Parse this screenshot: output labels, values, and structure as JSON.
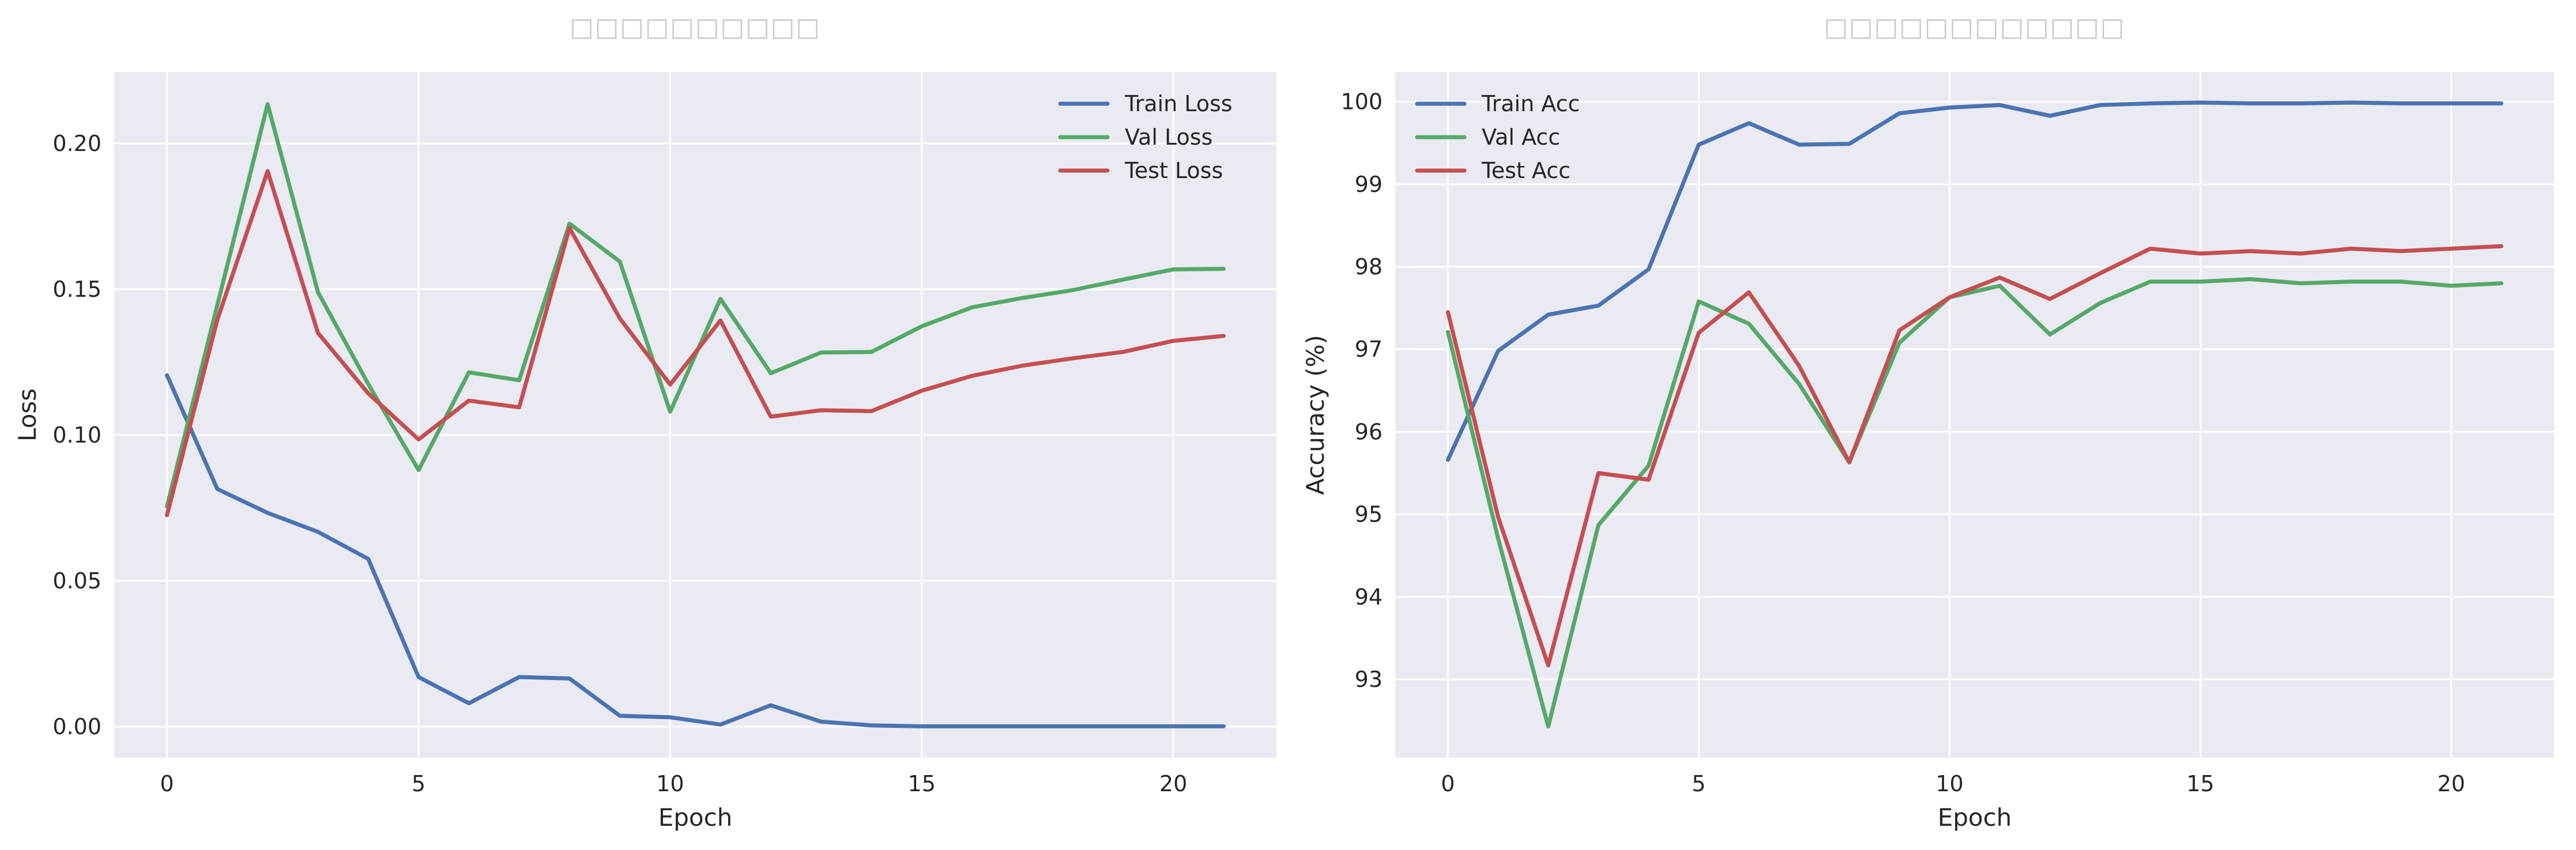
{
  "colors": {
    "train": "#4c72b0",
    "val": "#55a868",
    "test": "#c44e52",
    "plot_bg": "#eaeaf2",
    "grid": "#ffffff",
    "title_glyph": "#c8c8c8",
    "text": "#262626"
  },
  "chart_data": [
    {
      "type": "line",
      "title": "□□□□□□□□□□",
      "xlabel": "Epoch",
      "ylabel": "Loss",
      "xlim": [
        -1.05,
        22.05
      ],
      "ylim": [
        -0.0107,
        0.2245
      ],
      "xticks": [
        0,
        5,
        10,
        15,
        20
      ],
      "yticks": [
        0.0,
        0.05,
        0.1,
        0.15,
        0.2
      ],
      "ytick_labels": [
        "0.00",
        "0.05",
        "0.10",
        "0.15",
        "0.20"
      ],
      "grid": true,
      "legend_position": "top-right",
      "x": [
        0,
        1,
        2,
        3,
        4,
        5,
        6,
        7,
        8,
        9,
        10,
        11,
        12,
        13,
        14,
        15,
        16,
        17,
        18,
        19,
        20,
        21
      ],
      "series": [
        {
          "name": "Train Loss",
          "color": "#4c72b0",
          "values": [
            0.1205,
            0.0815,
            0.0733,
            0.0668,
            0.0575,
            0.017,
            0.008,
            0.017,
            0.0165,
            0.0037,
            0.0032,
            0.0007,
            0.0073,
            0.0017,
            0.0004,
            0.0001,
            0.0001,
            0.0001,
            0.0001,
            0.0001,
            0.0001,
            0.0001
          ]
        },
        {
          "name": "Val Loss",
          "color": "#55a868",
          "values": [
            0.0755,
            0.1445,
            0.2135,
            0.149,
            0.1175,
            0.088,
            0.1215,
            0.1188,
            0.1725,
            0.1595,
            0.108,
            0.1467,
            0.1212,
            0.1283,
            0.1285,
            0.1373,
            0.1438,
            0.147,
            0.1497,
            0.1533,
            0.1568,
            0.157
          ]
        },
        {
          "name": "Test Loss",
          "color": "#c44e52",
          "values": [
            0.0725,
            0.1395,
            0.1905,
            0.135,
            0.1143,
            0.0985,
            0.1118,
            0.1095,
            0.171,
            0.14,
            0.1173,
            0.1393,
            0.1063,
            0.1085,
            0.1082,
            0.1152,
            0.1203,
            0.1238,
            0.1263,
            0.1285,
            0.1323,
            0.134
          ]
        }
      ]
    },
    {
      "type": "line",
      "title": "□□□□□□□□□□□□",
      "xlabel": "Epoch",
      "ylabel": "Accuracy (%)",
      "xlim": [
        -1.05,
        22.05
      ],
      "ylim": [
        92.05,
        100.36
      ],
      "xticks": [
        0,
        5,
        10,
        15,
        20
      ],
      "yticks": [
        93,
        94,
        95,
        96,
        97,
        98,
        99,
        100
      ],
      "ytick_labels": [
        "93",
        "94",
        "95",
        "96",
        "97",
        "98",
        "99",
        "100"
      ],
      "grid": true,
      "legend_position": "top-left",
      "x": [
        0,
        1,
        2,
        3,
        4,
        5,
        6,
        7,
        8,
        9,
        10,
        11,
        12,
        13,
        14,
        15,
        16,
        17,
        18,
        19,
        20,
        21
      ],
      "series": [
        {
          "name": "Train Acc",
          "color": "#4c72b0",
          "values": [
            95.66,
            96.98,
            97.42,
            97.53,
            97.97,
            99.48,
            99.74,
            99.48,
            99.49,
            99.86,
            99.93,
            99.96,
            99.83,
            99.96,
            99.98,
            99.99,
            99.98,
            99.98,
            99.99,
            99.98,
            99.98,
            99.98
          ]
        },
        {
          "name": "Val Acc",
          "color": "#55a868",
          "values": [
            97.21,
            94.71,
            92.43,
            94.87,
            95.59,
            97.58,
            97.31,
            96.58,
            95.63,
            97.08,
            97.63,
            97.77,
            97.18,
            97.56,
            97.82,
            97.82,
            97.85,
            97.8,
            97.82,
            97.82,
            97.77,
            97.8
          ]
        },
        {
          "name": "Test Acc",
          "color": "#c44e52",
          "values": [
            97.45,
            94.97,
            93.17,
            95.5,
            95.42,
            97.2,
            97.69,
            96.8,
            95.63,
            97.23,
            97.63,
            97.87,
            97.61,
            97.92,
            98.22,
            98.16,
            98.19,
            98.16,
            98.22,
            98.19,
            98.22,
            98.25
          ]
        }
      ]
    }
  ]
}
